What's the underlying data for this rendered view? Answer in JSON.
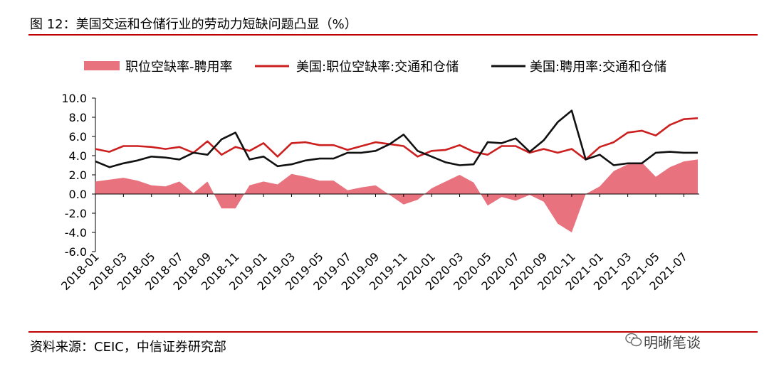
{
  "title": "图 12：美国交运和仓储行业的劳动力短缺问题凸显（%）",
  "source": "资料来源：CEIC，中信证券研究部",
  "watermark": "明晰笔谈",
  "chart_data": {
    "type": "line",
    "legend_position": "top",
    "grid": false,
    "ylim": [
      -6,
      10
    ],
    "yticks": [
      "10.0",
      "8.0",
      "6.0",
      "4.0",
      "2.0",
      "0.0",
      "-2.0",
      "-4.0",
      "-6.0"
    ],
    "x_tick_labels": [
      "2018-01",
      "2018-03",
      "2018-05",
      "2018-07",
      "2018-09",
      "2018-11",
      "2019-01",
      "2019-03",
      "2019-05",
      "2019-07",
      "2019-09",
      "2019-11",
      "2020-01",
      "2020-03",
      "2020-05",
      "2020-07",
      "2020-09",
      "2020-11",
      "2021-01",
      "2021-03",
      "2021-05",
      "2021-07"
    ],
    "x": [
      "2018-01",
      "2018-02",
      "2018-03",
      "2018-04",
      "2018-05",
      "2018-06",
      "2018-07",
      "2018-08",
      "2018-09",
      "2018-10",
      "2018-11",
      "2018-12",
      "2019-01",
      "2019-02",
      "2019-03",
      "2019-04",
      "2019-05",
      "2019-06",
      "2019-07",
      "2019-08",
      "2019-09",
      "2019-10",
      "2019-11",
      "2019-12",
      "2020-01",
      "2020-02",
      "2020-03",
      "2020-04",
      "2020-05",
      "2020-06",
      "2020-07",
      "2020-08",
      "2020-09",
      "2020-10",
      "2020-11",
      "2020-12",
      "2021-01",
      "2021-02",
      "2021-03",
      "2021-04",
      "2021-05",
      "2021-06",
      "2021-07",
      "2021-08"
    ],
    "series": [
      {
        "name": "职位空缺率-聘用率",
        "kind": "area",
        "color": "#e8727e",
        "values": [
          1.3,
          1.5,
          1.7,
          1.4,
          0.9,
          0.8,
          1.3,
          0.1,
          1.3,
          -1.5,
          -1.5,
          0.9,
          1.3,
          1.0,
          2.1,
          1.8,
          1.4,
          1.4,
          0.4,
          0.7,
          0.9,
          -0.1,
          -1.1,
          -0.6,
          0.6,
          1.3,
          2.0,
          1.2,
          -1.2,
          -0.3,
          -0.7,
          -0.1,
          -0.8,
          -3.1,
          -4.0,
          0.0,
          0.8,
          2.4,
          3.1,
          3.3,
          1.8,
          2.8,
          3.4,
          3.6
        ]
      },
      {
        "name": "美国:职位空缺率:交通和仓储",
        "kind": "line",
        "color": "#cc1f1f",
        "values": [
          4.7,
          4.4,
          5.0,
          5.0,
          4.9,
          4.7,
          4.9,
          4.3,
          5.5,
          4.1,
          4.9,
          4.5,
          5.3,
          3.9,
          5.3,
          5.4,
          5.1,
          5.1,
          4.6,
          5.0,
          5.4,
          5.2,
          5.0,
          3.9,
          4.5,
          4.6,
          5.1,
          4.4,
          4.1,
          5.0,
          5.0,
          4.3,
          4.7,
          4.3,
          4.7,
          3.6,
          4.9,
          5.4,
          6.4,
          6.6,
          6.1,
          7.2,
          7.8,
          7.9
        ]
      },
      {
        "name": "美国:聘用率:交通和仓储",
        "kind": "line",
        "color": "#111111",
        "values": [
          3.4,
          2.8,
          3.2,
          3.5,
          3.9,
          3.8,
          3.6,
          4.3,
          4.1,
          5.7,
          6.4,
          3.6,
          3.9,
          2.9,
          3.1,
          3.5,
          3.7,
          3.7,
          4.3,
          4.3,
          4.5,
          5.2,
          6.2,
          4.5,
          3.9,
          3.3,
          3.0,
          3.1,
          5.4,
          5.3,
          5.8,
          4.4,
          5.6,
          7.5,
          8.7,
          3.6,
          4.1,
          3.0,
          3.2,
          3.2,
          4.3,
          4.4,
          4.3,
          4.3
        ]
      }
    ]
  }
}
